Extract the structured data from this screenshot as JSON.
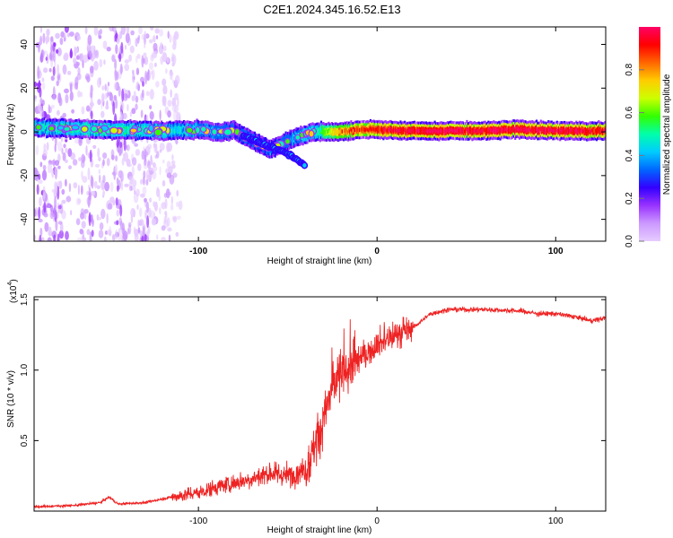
{
  "title": "C2E1.2024.345.16.52.E13",
  "chart_data": [
    {
      "type": "heatmap",
      "xlabel": "Height of straight line (km)",
      "ylabel": "Frequency (Hz)",
      "xlim": [
        -192,
        128
      ],
      "ylim": [
        -50,
        48
      ],
      "xticks": [
        -100,
        0,
        100
      ],
      "yticks": [
        -40,
        -20,
        0,
        20,
        40
      ],
      "colorbar": {
        "label": "Normalized spectral amplitude",
        "range": [
          0,
          1
        ],
        "ticks": [
          "0.0",
          "0.2",
          "0.4",
          "0.6",
          "0.8"
        ],
        "colors": [
          "#e6ccff",
          "#cc99ff",
          "#9933ff",
          "#3300ff",
          "#0066ff",
          "#00ccff",
          "#00ffaa",
          "#33ff00",
          "#ccff00",
          "#ffcc00",
          "#ff6600",
          "#ff0000",
          "#ff0066"
        ]
      },
      "ridge": {
        "x": [
          -192,
          -150,
          -120,
          -100,
          -90,
          -80,
          -70,
          -60,
          -50,
          -40,
          -35,
          -30,
          -20,
          -10,
          0,
          20,
          40,
          60,
          80,
          100,
          128
        ],
        "frequency": [
          2,
          1,
          0.5,
          1,
          0,
          0.5,
          -4,
          -8,
          -4,
          -1,
          0,
          0,
          0,
          1,
          1,
          0.5,
          0.5,
          0.5,
          1,
          0.5,
          0.5
        ],
        "amplitude": [
          0.45,
          0.5,
          0.45,
          0.4,
          0.35,
          0.3,
          0.3,
          0.3,
          0.35,
          0.45,
          0.45,
          0.6,
          0.8,
          0.85,
          0.9,
          0.95,
          0.95,
          0.95,
          0.95,
          0.95,
          0.9
        ]
      },
      "branch": {
        "x": [
          -75,
          -68,
          -62,
          -56,
          -50,
          -46,
          -42,
          -40
        ],
        "frequency": [
          -2,
          -4,
          -6,
          -8,
          -10,
          -12,
          -14,
          -16
        ]
      },
      "noise_region_x": [
        -192,
        -110
      ]
    },
    {
      "type": "line",
      "xlabel": "Height of straight line (km)",
      "ylabel": "SNR (10 * v/v)",
      "y_multiplier": "(x10",
      "y_multiplier_exp": "4",
      "y_multiplier_close": ")",
      "xlim": [
        -192,
        128
      ],
      "ylim": [
        0,
        1.52
      ],
      "xticks": [
        -100,
        0,
        100
      ],
      "yticks": [
        0.5,
        1.0,
        1.5
      ],
      "yticklabels": [
        "0.5",
        "1.0",
        "1.5"
      ],
      "color": "#ee2222",
      "series": [
        {
          "x": [
            -192,
            -170,
            -155,
            -150,
            -145,
            -130,
            -115,
            -100,
            -90,
            -80,
            -70,
            -60,
            -50,
            -40,
            -35,
            -30,
            -25,
            -20,
            -15,
            -10,
            -5,
            0,
            10,
            20,
            30,
            40,
            60,
            80,
            90,
            100,
            110,
            120,
            128
          ],
          "values": [
            0.03,
            0.04,
            0.06,
            0.1,
            0.05,
            0.06,
            0.1,
            0.13,
            0.17,
            0.2,
            0.23,
            0.27,
            0.25,
            0.3,
            0.45,
            0.65,
            0.88,
            0.95,
            1.02,
            1.08,
            1.12,
            1.18,
            1.25,
            1.3,
            1.4,
            1.43,
            1.43,
            1.42,
            1.4,
            1.4,
            1.38,
            1.35,
            1.37
          ]
        }
      ]
    }
  ]
}
